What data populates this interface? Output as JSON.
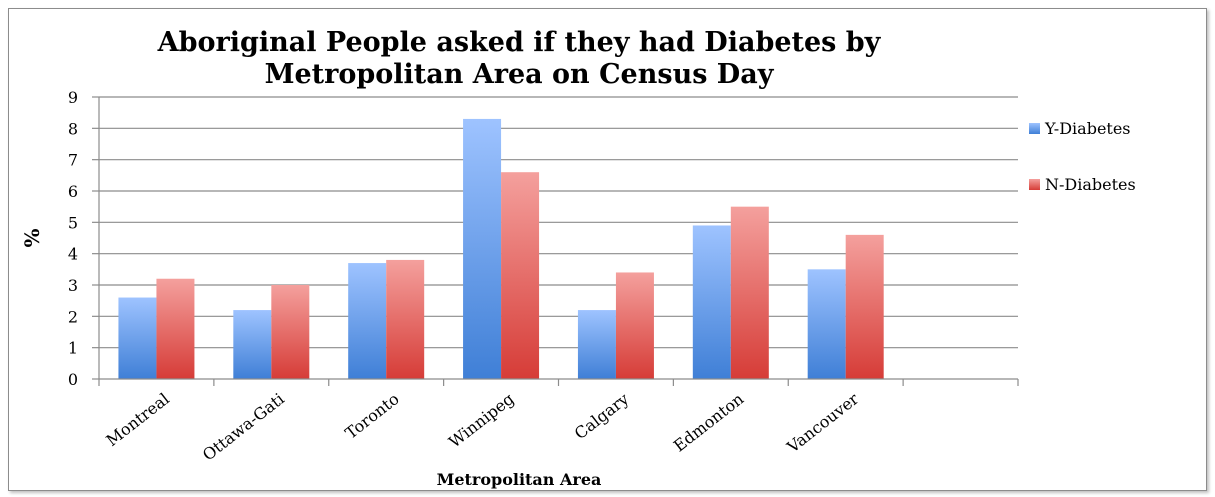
{
  "chart_data": {
    "type": "bar",
    "title_lines": [
      "Aboriginal People asked if they had Diabetes by",
      "Metropolitan Area on Census Day"
    ],
    "xlabel": "Metropolitan Area",
    "ylabel": "%",
    "ylim": [
      0,
      9
    ],
    "yticks": [
      0,
      1,
      2,
      3,
      4,
      5,
      6,
      7,
      8,
      9
    ],
    "grid": true,
    "legend_position": "right",
    "categories": [
      "Montreal",
      "Ottawa-Gati",
      "Toronto",
      "Winnipeg",
      "Calgary",
      "Edmonton",
      "Vancouver",
      ""
    ],
    "series": [
      {
        "name": "Y-Diabetes",
        "color_top": "#9ec3ff",
        "color_bottom": "#3f7fd6",
        "values": [
          2.6,
          2.2,
          3.7,
          8.3,
          2.2,
          4.9,
          3.5,
          null
        ]
      },
      {
        "name": "N-Diabetes",
        "color_top": "#f4a09d",
        "color_bottom": "#d63c37",
        "values": [
          3.2,
          3.0,
          3.8,
          6.6,
          3.4,
          5.5,
          4.6,
          null
        ]
      }
    ]
  }
}
